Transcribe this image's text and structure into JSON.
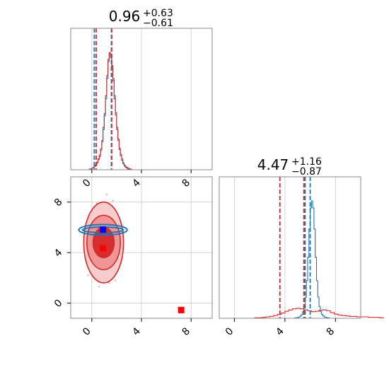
{
  "chart_data": [
    {
      "panel": "top-left",
      "type": "histogram",
      "title_main": "0.96",
      "title_sup": "+0.63",
      "title_sub": "−0.61",
      "xlim": [
        -1.7,
        9.7
      ],
      "x_ticks": [
        0,
        4,
        8
      ],
      "grid": true,
      "series": [
        {
          "color": "#1f77b4",
          "bin_start": -0.2,
          "bin_width": 0.1,
          "counts": [
            1,
            1,
            2,
            3,
            4,
            6,
            9,
            13,
            17,
            25,
            36,
            52,
            70,
            92,
            118,
            140,
            150,
            145,
            135,
            118,
            96,
            74,
            55,
            40,
            28,
            20,
            14,
            9,
            6,
            4,
            3,
            2,
            1,
            1
          ]
        },
        {
          "color": "#d62728",
          "bin_start": -0.2,
          "bin_width": 0.1,
          "counts": [
            0,
            1,
            2,
            3,
            5,
            7,
            10,
            14,
            19,
            27,
            38,
            55,
            73,
            96,
            122,
            143,
            152,
            148,
            134,
            115,
            92,
            71,
            52,
            38,
            26,
            18,
            12,
            8,
            5,
            3,
            2,
            1,
            1,
            0
          ]
        }
      ],
      "quantile_lines": [
        {
          "color": "#1f77b4",
          "values": [
            0.2,
            1.58
          ]
        },
        {
          "color": "#d62728",
          "values": [
            0.35,
            1.6
          ]
        }
      ]
    },
    {
      "panel": "bottom-left",
      "type": "contour",
      "xlim": [
        -1.7,
        9.7
      ],
      "ylim": [
        -1.2,
        10.0
      ],
      "x_ticks": [
        0,
        4,
        8
      ],
      "y_ticks": [
        0,
        4,
        8
      ],
      "grid": true,
      "red_density": {
        "color": "#d62728",
        "center": [
          0.95,
          4.8
        ],
        "levels": [
          {
            "rx": 0.85,
            "ry": 1.2
          },
          {
            "rx": 1.35,
            "ry": 2.15
          },
          {
            "rx": 1.6,
            "ry": 3.2
          }
        ]
      },
      "blue_density": {
        "color": "#1f77b4",
        "center": [
          0.9,
          5.8
        ],
        "levels": [
          {
            "rx": 1.65,
            "ry": 0.22
          },
          {
            "rx": 1.95,
            "ry": 0.42
          }
        ]
      },
      "markers": [
        {
          "color": "#0000ff",
          "x": 0.9,
          "y": 5.82
        },
        {
          "color": "#ff0000",
          "x": 0.9,
          "y": 4.35
        },
        {
          "color": "#ff0000",
          "x": 7.2,
          "y": -0.55
        }
      ]
    },
    {
      "panel": "bottom-right",
      "type": "histogram",
      "title_main": "4.47",
      "title_sup": "+1.16",
      "title_sub": "−0.87",
      "xlim": [
        -1.2,
        10.0
      ],
      "x_ticks": [
        0,
        4,
        8
      ],
      "grid": true,
      "series": [
        {
          "color": "#1f77b4",
          "bin_start": 4.8,
          "bin_width": 0.1,
          "counts": [
            1,
            1,
            2,
            3,
            5,
            8,
            14,
            25,
            45,
            80,
            130,
            190,
            235,
            250,
            235,
            190,
            130,
            80,
            45,
            25,
            14,
            8,
            5,
            3,
            2,
            1,
            1
          ]
        },
        {
          "color": "#d62728",
          "bin_start": 1.6,
          "bin_width": 0.3,
          "counts": [
            1,
            1,
            2,
            3,
            4,
            6,
            8,
            11,
            15,
            18,
            20,
            21,
            20,
            18,
            16,
            14,
            15,
            17,
            18,
            16,
            12,
            9,
            7,
            6,
            5,
            4,
            4,
            3,
            3,
            3,
            2,
            2,
            2,
            1
          ]
        }
      ],
      "quantile_lines": [
        {
          "color": "#d62728",
          "values": [
            3.6,
            5.5
          ]
        },
        {
          "color": "#1f77b4",
          "values": [
            5.6,
            6.0
          ]
        }
      ]
    }
  ]
}
